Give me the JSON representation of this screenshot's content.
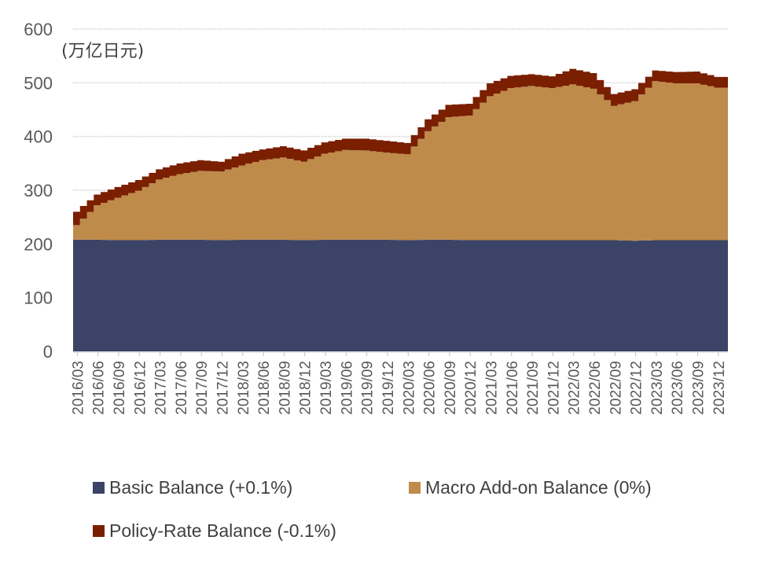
{
  "chart_data": {
    "type": "area",
    "stacked": true,
    "title": "",
    "unit_label": "(万亿日元)",
    "xlabel": "",
    "ylabel": "",
    "ylim": [
      0,
      600
    ],
    "yticks": [
      0,
      100,
      200,
      300,
      400,
      500,
      600
    ],
    "grid": true,
    "legend_position": "bottom",
    "x": [
      "2016/03",
      "2016/06",
      "2016/09",
      "2016/12",
      "2017/03",
      "2017/06",
      "2017/09",
      "2017/12",
      "2018/03",
      "2018/06",
      "2018/09",
      "2018/12",
      "2019/03",
      "2019/06",
      "2019/09",
      "2019/12",
      "2020/03",
      "2020/06",
      "2020/09",
      "2020/12",
      "2021/03",
      "2021/06",
      "2021/09",
      "2021/12",
      "2022/03",
      "2022/06",
      "2022/09",
      "2022/12",
      "2023/03",
      "2023/06",
      "2023/09",
      "2023/12"
    ],
    "series": [
      {
        "name": "Basic Balance (+0.1%)",
        "color": "#3B4466",
        "values": [
          208,
          208,
          207,
          207,
          208,
          208,
          208,
          207,
          208,
          208,
          208,
          207,
          208,
          208,
          208,
          208,
          207,
          208,
          208,
          207,
          207,
          207,
          207,
          207,
          207,
          207,
          207,
          206,
          207,
          207,
          207,
          207
        ]
      },
      {
        "name": "Macro Add-on Balance (0%)",
        "color": "#BE8B4A",
        "values": [
          27,
          64,
          79,
          92,
          112,
          122,
          128,
          128,
          138,
          148,
          153,
          146,
          160,
          167,
          166,
          162,
          160,
          202,
          228,
          232,
          268,
          283,
          287,
          283,
          290,
          282,
          250,
          260,
          296,
          292,
          292,
          284
        ]
      },
      {
        "name": "Policy-Rate Balance (-0.1%)",
        "color": "#7A1F00",
        "values": [
          25,
          20,
          20,
          20,
          19,
          20,
          20,
          18,
          22,
          20,
          21,
          21,
          21,
          21,
          22,
          22,
          21,
          22,
          23,
          22,
          24,
          23,
          22,
          22,
          29,
          29,
          22,
          22,
          20,
          21,
          22,
          20
        ]
      }
    ]
  },
  "axis": {
    "unit_label": "(万亿日元)",
    "y_labels": [
      "0",
      "100",
      "200",
      "300",
      "400",
      "500",
      "600"
    ],
    "x_labels": [
      "2016/03",
      "2016/06",
      "2016/09",
      "2016/12",
      "2017/03",
      "2017/06",
      "2017/09",
      "2017/12",
      "2018/03",
      "2018/06",
      "2018/09",
      "2018/12",
      "2019/03",
      "2019/06",
      "2019/09",
      "2019/12",
      "2020/03",
      "2020/06",
      "2020/09",
      "2020/12",
      "2021/03",
      "2021/06",
      "2021/09",
      "2021/12",
      "2022/03",
      "2022/06",
      "2022/09",
      "2022/12",
      "2023/03",
      "2023/06",
      "2023/09",
      "2023/12"
    ]
  },
  "legend": [
    {
      "label": "Basic Balance (+0.1%)",
      "color": "#3B4466"
    },
    {
      "label": "Macro Add-on Balance (0%)",
      "color": "#BE8B4A"
    },
    {
      "label": "Policy-Rate Balance (-0.1%)",
      "color": "#7A1F00"
    }
  ]
}
